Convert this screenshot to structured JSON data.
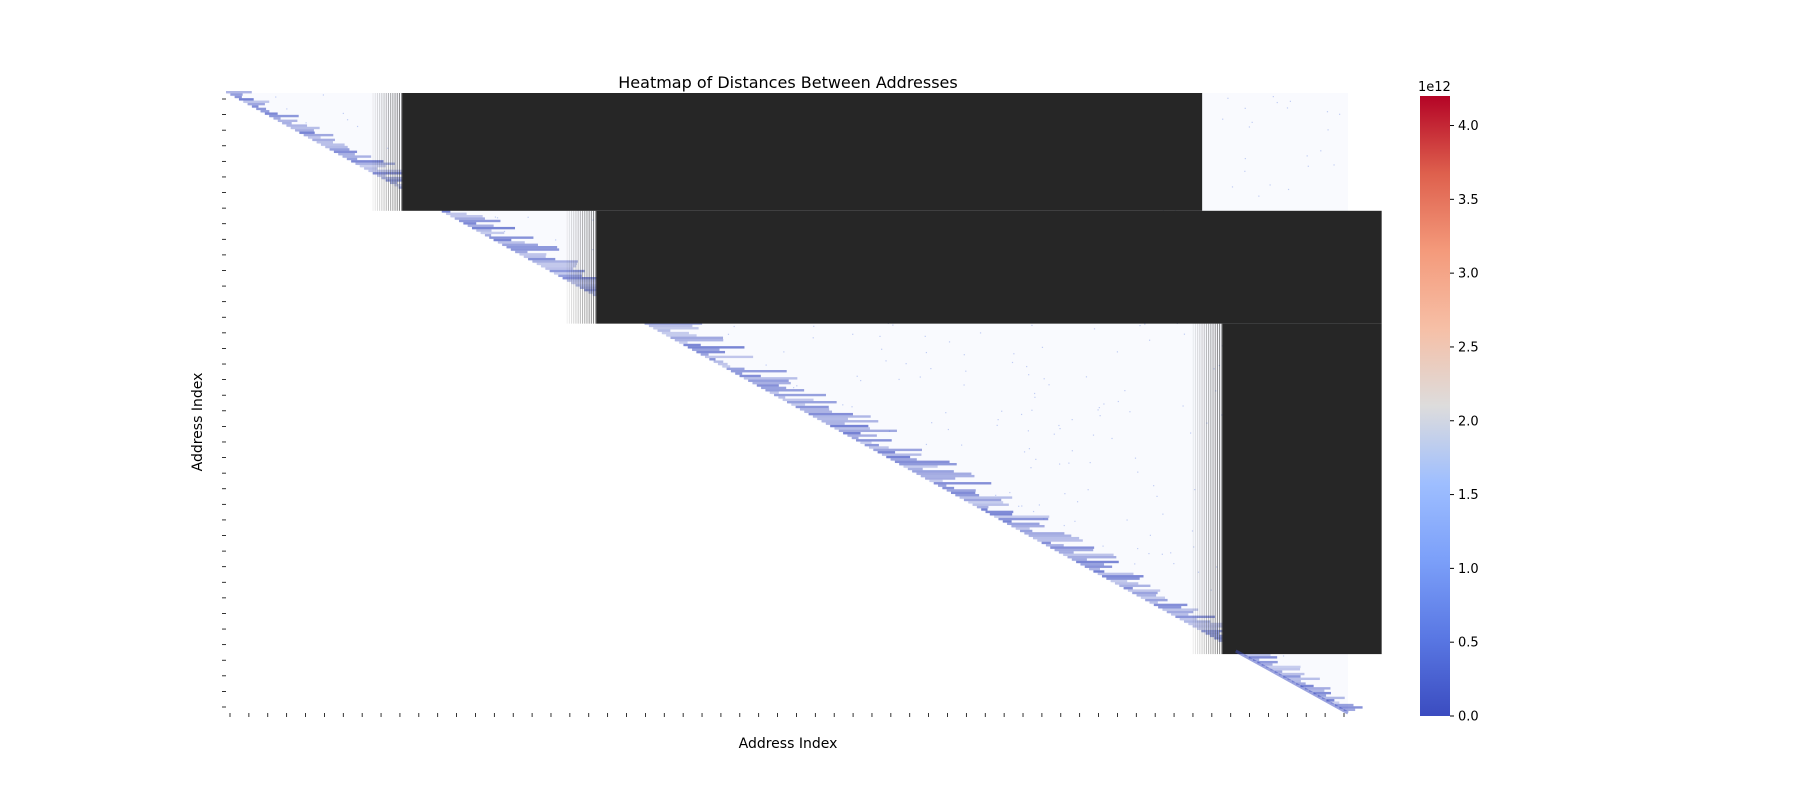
{
  "chart_data": {
    "type": "heatmap",
    "title": "Heatmap of Distances Between Addresses",
    "xlabel": "Address Index",
    "ylabel": "Address Index",
    "matrix_shape": "upper-triangular, square",
    "colormap": "coolwarm",
    "colorbar": {
      "multiplier_label": "1e12",
      "range": [
        0.0,
        4.2
      ],
      "ticks": [
        0.0,
        0.5,
        1.0,
        1.5,
        2.0,
        2.5,
        3.0,
        3.5,
        4.0
      ],
      "tick_labels": [
        "0.0",
        "0.5",
        "1.0",
        "1.5",
        "2.0",
        "2.5",
        "3.0",
        "3.5",
        "4.0"
      ]
    },
    "value_bands": [
      {
        "level": "dense",
        "row_range": [
          0.0,
          0.19
        ],
        "col_range": [
          0.157,
          0.87
        ],
        "value_e12": 0.0
      },
      {
        "level": "dense",
        "row_range": [
          0.19,
          0.372
        ],
        "col_range": [
          0.33,
          1.0
        ],
        "value_e12": 0.0
      },
      {
        "level": "dense",
        "row_range": [
          0.372,
          0.905
        ],
        "col_range": [
          0.888,
          1.0
        ],
        "value_e12": 0.0
      },
      {
        "level": "near-diagonal",
        "value_e12_range": [
          0.0,
          0.5
        ]
      },
      {
        "level": "far-off-diagonal",
        "value_e12_range": [
          1.5,
          2.2
        ]
      }
    ],
    "grid": false,
    "legend": "colorbar-right"
  }
}
